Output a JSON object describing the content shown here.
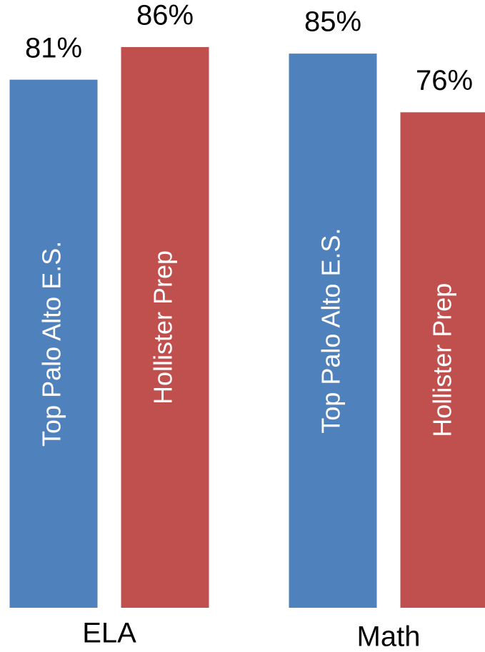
{
  "chart_data": {
    "type": "bar",
    "categories": [
      "ELA",
      "Math"
    ],
    "series": [
      {
        "name": "Top Palo Alto E.S.",
        "color": "#4f81bd",
        "values": [
          81,
          85
        ],
        "value_labels": [
          "81%",
          "85%"
        ]
      },
      {
        "name": "Hollister Prep",
        "color": "#c0504d",
        "values": [
          86,
          76
        ],
        "value_labels": [
          "86%",
          "76%"
        ]
      }
    ]
  }
}
